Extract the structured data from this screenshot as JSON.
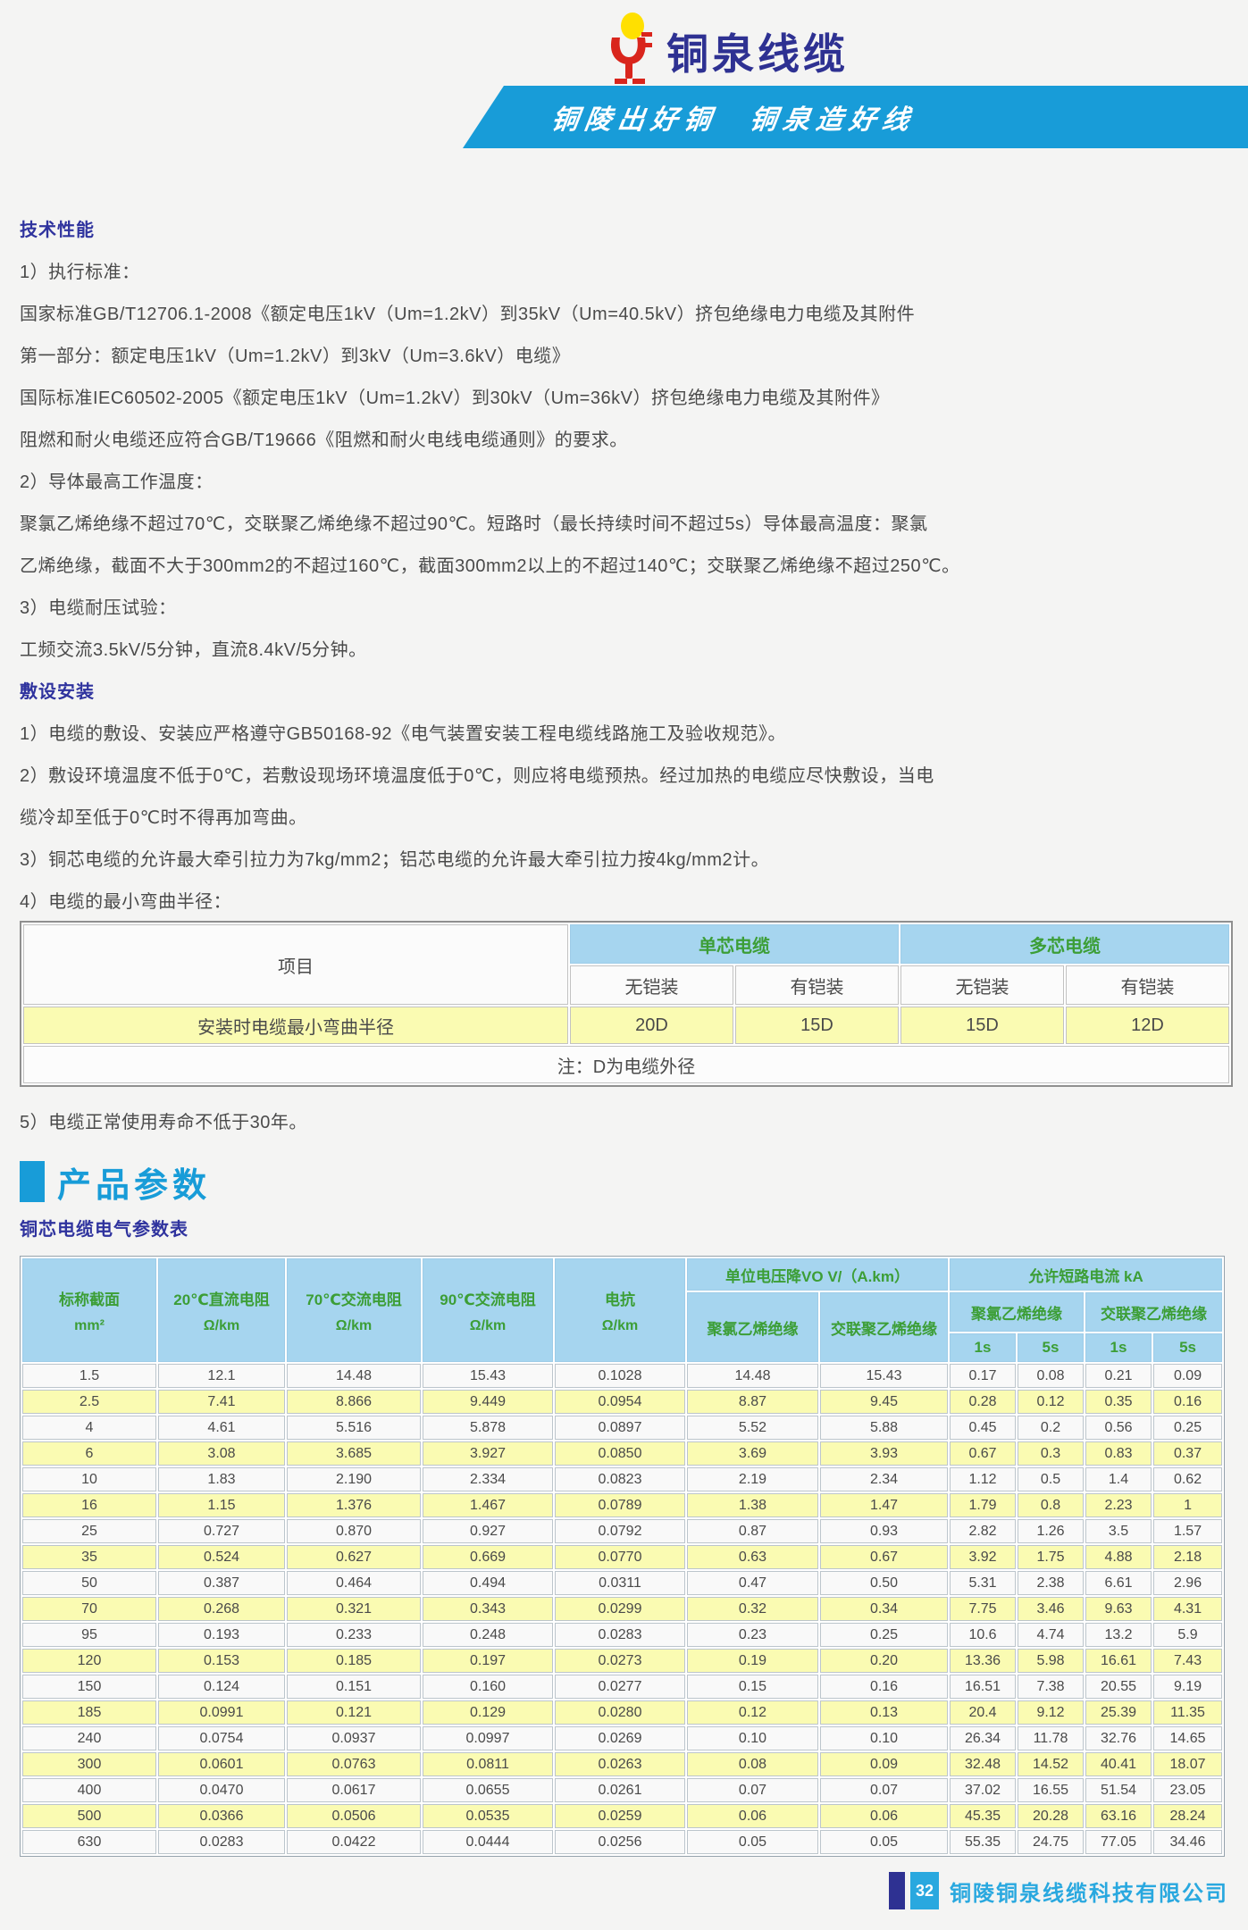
{
  "header": {
    "brand": "铜泉线缆",
    "slogan": "铜陵出好铜　铜泉造好线"
  },
  "tech": {
    "title": "技术性能",
    "lines": [
      "1）执行标准：",
      "国家标准GB/T12706.1-2008《额定电压1kV（Um=1.2kV）到35kV（Um=40.5kV）挤包绝缘电力电缆及其附件",
      "第一部分：额定电压1kV（Um=1.2kV）到3kV（Um=3.6kV）电缆》",
      "国际标准IEC60502-2005《额定电压1kV（Um=1.2kV）到30kV（Um=36kV）挤包绝缘电力电缆及其附件》",
      "阻燃和耐火电缆还应符合GB/T19666《阻燃和耐火电线电缆通则》的要求。",
      "2）导体最高工作温度：",
      "聚氯乙烯绝缘不超过70℃，交联聚乙烯绝缘不超过90℃。短路时（最长持续时间不超过5s）导体最高温度：聚氯",
      "乙烯绝缘，截面不大于300mm2的不超过160℃，截面300mm2以上的不超过140℃；交联聚乙烯绝缘不超过250℃。",
      "3）电缆耐压试验：",
      "工频交流3.5kV/5分钟，直流8.4kV/5分钟。"
    ]
  },
  "install": {
    "title": "敷设安装",
    "lines": [
      "1）电缆的敷设、安装应严格遵守GB50168-92《电气装置安装工程电缆线路施工及验收规范》。",
      "2）敷设环境温度不低于0℃，若敷设现场环境温度低于0℃，则应将电缆预热。经过加热的电缆应尽快敷设，当电",
      "缆冷却至低于0℃时不得再加弯曲。",
      "3）铜芯电缆的允许最大牵引拉力为7kg/mm2；铝芯电缆的允许最大牵引拉力按4kg/mm2计。",
      "4）电缆的最小弯曲半径："
    ]
  },
  "bend_table": {
    "item_header": "项目",
    "groups": [
      "单芯电缆",
      "多芯电缆"
    ],
    "sub_headers": [
      "无铠装",
      "有铠装",
      "无铠装",
      "有铠装"
    ],
    "row_label": "安装时电缆最小弯曲半径",
    "row_values": [
      "20D",
      "15D",
      "15D",
      "12D"
    ],
    "note": "注：D为电缆外径"
  },
  "life_note": "5）电缆正常使用寿命不低于30年。",
  "product_params_title": "产品参数",
  "params_table": {
    "title": "铜芯电缆电气参数表",
    "columns": [
      {
        "label": "标称截面",
        "unit": "mm²"
      },
      {
        "label": "20℃直流电阻",
        "unit": "Ω/km"
      },
      {
        "label": "70℃交流电阻",
        "unit": "Ω/km"
      },
      {
        "label": "90℃交流电阻",
        "unit": "Ω/km"
      },
      {
        "label": "电抗",
        "unit": "Ω/km"
      }
    ],
    "vd_group": {
      "label": "单位电压降VO V/（A.km）",
      "subs": [
        "聚氯乙烯绝缘",
        "交联聚乙烯绝缘"
      ]
    },
    "sc_group": {
      "label": "允许短路电流 kA",
      "subs": [
        "聚氯乙烯绝缘",
        "交联聚乙烯绝缘"
      ],
      "times": [
        "1s",
        "5s",
        "1s",
        "5s"
      ]
    },
    "rows": [
      [
        "1.5",
        "12.1",
        "14.48",
        "15.43",
        "0.1028",
        "14.48",
        "15.43",
        "0.17",
        "0.08",
        "0.21",
        "0.09"
      ],
      [
        "2.5",
        "7.41",
        "8.866",
        "9.449",
        "0.0954",
        "8.87",
        "9.45",
        "0.28",
        "0.12",
        "0.35",
        "0.16"
      ],
      [
        "4",
        "4.61",
        "5.516",
        "5.878",
        "0.0897",
        "5.52",
        "5.88",
        "0.45",
        "0.2",
        "0.56",
        "0.25"
      ],
      [
        "6",
        "3.08",
        "3.685",
        "3.927",
        "0.0850",
        "3.69",
        "3.93",
        "0.67",
        "0.3",
        "0.83",
        "0.37"
      ],
      [
        "10",
        "1.83",
        "2.190",
        "2.334",
        "0.0823",
        "2.19",
        "2.34",
        "1.12",
        "0.5",
        "1.4",
        "0.62"
      ],
      [
        "16",
        "1.15",
        "1.376",
        "1.467",
        "0.0789",
        "1.38",
        "1.47",
        "1.79",
        "0.8",
        "2.23",
        "1"
      ],
      [
        "25",
        "0.727",
        "0.870",
        "0.927",
        "0.0792",
        "0.87",
        "0.93",
        "2.82",
        "1.26",
        "3.5",
        "1.57"
      ],
      [
        "35",
        "0.524",
        "0.627",
        "0.669",
        "0.0770",
        "0.63",
        "0.67",
        "3.92",
        "1.75",
        "4.88",
        "2.18"
      ],
      [
        "50",
        "0.387",
        "0.464",
        "0.494",
        "0.0311",
        "0.47",
        "0.50",
        "5.31",
        "2.38",
        "6.61",
        "2.96"
      ],
      [
        "70",
        "0.268",
        "0.321",
        "0.343",
        "0.0299",
        "0.32",
        "0.34",
        "7.75",
        "3.46",
        "9.63",
        "4.31"
      ],
      [
        "95",
        "0.193",
        "0.233",
        "0.248",
        "0.0283",
        "0.23",
        "0.25",
        "10.6",
        "4.74",
        "13.2",
        "5.9"
      ],
      [
        "120",
        "0.153",
        "0.185",
        "0.197",
        "0.0273",
        "0.19",
        "0.20",
        "13.36",
        "5.98",
        "16.61",
        "7.43"
      ],
      [
        "150",
        "0.124",
        "0.151",
        "0.160",
        "0.0277",
        "0.15",
        "0.16",
        "16.51",
        "7.38",
        "20.55",
        "9.19"
      ],
      [
        "185",
        "0.0991",
        "0.121",
        "0.129",
        "0.0280",
        "0.12",
        "0.13",
        "20.4",
        "9.12",
        "25.39",
        "11.35"
      ],
      [
        "240",
        "0.0754",
        "0.0937",
        "0.0997",
        "0.0269",
        "0.10",
        "0.10",
        "26.34",
        "11.78",
        "32.76",
        "14.65"
      ],
      [
        "300",
        "0.0601",
        "0.0763",
        "0.0811",
        "0.0263",
        "0.08",
        "0.09",
        "32.48",
        "14.52",
        "40.41",
        "18.07"
      ],
      [
        "400",
        "0.0470",
        "0.0617",
        "0.0655",
        "0.0261",
        "0.07",
        "0.07",
        "37.02",
        "16.55",
        "51.54",
        "23.05"
      ],
      [
        "500",
        "0.0366",
        "0.0506",
        "0.0535",
        "0.0259",
        "0.06",
        "0.06",
        "45.35",
        "20.28",
        "63.16",
        "28.24"
      ],
      [
        "630",
        "0.0283",
        "0.0422",
        "0.0444",
        "0.0256",
        "0.05",
        "0.05",
        "55.35",
        "24.75",
        "77.05",
        "34.46"
      ]
    ]
  },
  "footer": {
    "page": "32",
    "company": "铜陵铜泉线缆科技有限公司"
  },
  "colors": {
    "brand_navy": "#2e3192",
    "banner_blue": "#189cd8",
    "table_header_bg": "#a6d5ef",
    "table_header_green": "#3c9e36",
    "zebra_yellow": "#fafbb2",
    "footer_cyan": "#29a8df",
    "logo_red": "#d9251c",
    "logo_yellow": "#ffe000"
  }
}
